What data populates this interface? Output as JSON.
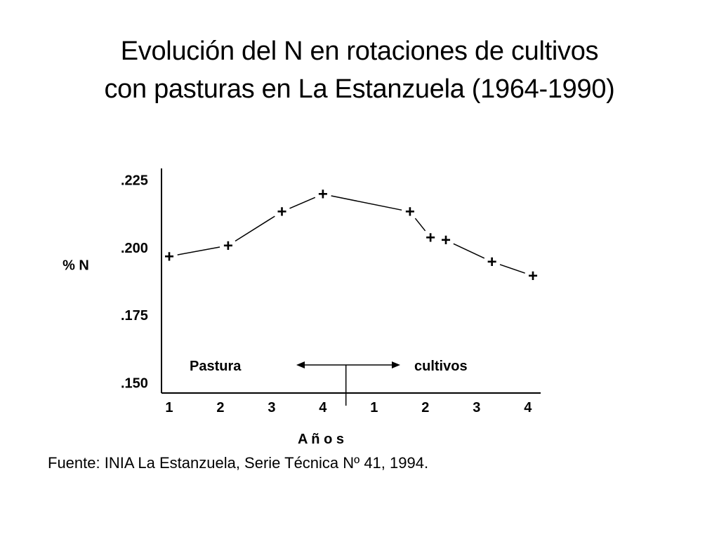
{
  "slide": {
    "title_line1": "Evolución del N en rotaciones de cultivos",
    "title_line2": "con pasturas en La Estanzuela (1964-1990)",
    "source": "Fuente: INIA La Estanzuela, Serie Técnica Nº 41, 1994."
  },
  "chart_data": {
    "type": "line",
    "title": "Evolución del N en rotaciones de cultivos con pasturas en La Estanzuela (1964-1990)",
    "ylabel": "% N",
    "xlabel": "A ñ o s",
    "y_ticks": [
      ".225",
      ".200",
      ".175",
      ".150"
    ],
    "y_tick_values": [
      0.225,
      0.2,
      0.175,
      0.15
    ],
    "ylim": [
      0.146,
      0.229
    ],
    "x_ticks": [
      "1",
      "2",
      "3",
      "4",
      "1",
      "2",
      "3",
      "4"
    ],
    "x_tick_values": [
      1,
      2,
      3,
      4,
      5,
      6,
      7,
      8
    ],
    "xlim": [
      0.85,
      8.25
    ],
    "marker": "+",
    "points": [
      {
        "x": 1.0,
        "y": 0.1965
      },
      {
        "x": 2.15,
        "y": 0.2005
      },
      {
        "x": 3.2,
        "y": 0.213
      },
      {
        "x": 4.0,
        "y": 0.2195
      },
      {
        "x": 5.7,
        "y": 0.213
      },
      {
        "x": 6.1,
        "y": 0.2035
      },
      {
        "x": 6.4,
        "y": 0.2025
      },
      {
        "x": 7.3,
        "y": 0.1945
      },
      {
        "x": 8.1,
        "y": 0.1893
      }
    ],
    "annotations": {
      "left_label": "Pastura",
      "right_label": "cultivos",
      "divider_x": 4.45
    },
    "grid": false
  }
}
